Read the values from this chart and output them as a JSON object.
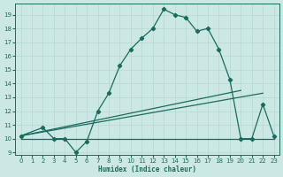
{
  "xlabel": "Humidex (Indice chaleur)",
  "bg_color": "#cce8e4",
  "line_color": "#1a6b5e",
  "grid_color": "#b8d8d2",
  "xlim": [
    -0.5,
    23.5
  ],
  "ylim": [
    8.8,
    19.8
  ],
  "yticks": [
    9,
    10,
    11,
    12,
    13,
    14,
    15,
    16,
    17,
    18,
    19
  ],
  "xticks": [
    0,
    1,
    2,
    3,
    4,
    5,
    6,
    7,
    8,
    9,
    10,
    11,
    12,
    13,
    14,
    15,
    16,
    17,
    18,
    19,
    20,
    21,
    22,
    23
  ],
  "main_line": {
    "x": [
      0,
      2,
      3,
      4,
      5,
      6,
      7,
      8,
      9,
      10,
      11,
      12,
      13,
      14,
      15,
      16,
      17,
      18,
      19,
      20,
      21,
      22,
      23
    ],
    "y": [
      10.2,
      10.8,
      10.0,
      10.0,
      9.0,
      9.8,
      12.0,
      13.3,
      15.3,
      16.5,
      17.3,
      18.0,
      19.4,
      19.0,
      18.8,
      17.8,
      18.0,
      16.5,
      14.3,
      10.0,
      10.0,
      12.5,
      10.2
    ]
  },
  "flat_line": {
    "x": [
      0,
      23
    ],
    "y": [
      10.0,
      10.0
    ]
  },
  "diag_line1": {
    "x": [
      0,
      20
    ],
    "y": [
      10.2,
      13.5
    ]
  },
  "diag_line2": {
    "x": [
      0,
      22
    ],
    "y": [
      10.2,
      13.3
    ]
  }
}
